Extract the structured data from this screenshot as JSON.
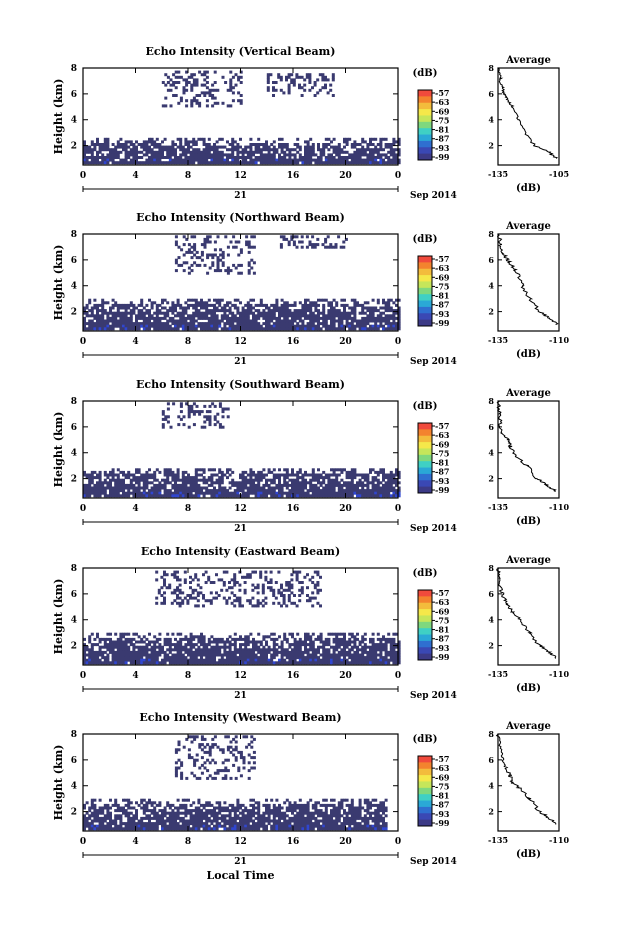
{
  "figure": {
    "date_label": "Sep 2014",
    "xaxis_label": "Local Time",
    "colorbar_title": "(dB)",
    "colorbar_ticks": [
      "-57",
      "-63",
      "-69",
      "-75",
      "-81",
      "-87",
      "-93",
      "-99"
    ],
    "colorbar_colors": [
      "#f04a3c",
      "#f3832e",
      "#f3bc3c",
      "#f5e84a",
      "#c6e65a",
      "#7fd87e",
      "#3fd0c4",
      "#2aa8d6",
      "#2f6fd0",
      "#3a48b4",
      "#3c3a86"
    ],
    "echo_color": "#3a3a70",
    "echo_low_color": "#3046d0"
  },
  "chart_data": [
    {
      "type": "heatmap",
      "title": "Echo Intensity (Vertical Beam)",
      "xlabel": "",
      "ylabel": "Height (km)",
      "x_ticks": [
        "0",
        "4",
        "8",
        "12",
        "16",
        "20",
        "0"
      ],
      "x_day_label": "21",
      "y_ticks": [
        "2",
        "4",
        "6",
        "8"
      ],
      "xlim": [
        0,
        24
      ],
      "ylim": [
        0.5,
        8
      ],
      "colorbar": {
        "label": "(dB)",
        "ticks": [
          -57,
          -63,
          -69,
          -75,
          -81,
          -87,
          -93,
          -99
        ]
      },
      "echo_regions": [
        {
          "x": [
            0,
            24
          ],
          "height_km": [
            0.6,
            2.6
          ],
          "level_db": -97
        },
        {
          "x": [
            6,
            12
          ],
          "height_km": [
            5.0,
            7.8
          ],
          "level_db": -97
        },
        {
          "x": [
            14,
            19
          ],
          "height_km": [
            5.8,
            7.6
          ],
          "level_db": -97
        }
      ],
      "average_profile": {
        "title": "Average",
        "xlabel": "(dB)",
        "x_ticks": [
          "-135",
          "-105"
        ],
        "y_ticks": [
          "2",
          "4",
          "6",
          "8"
        ],
        "xlim": [
          -135,
          -105
        ],
        "ylim": [
          0.5,
          8
        ],
        "db": [
          -106,
          -110,
          -117,
          -122,
          -125,
          -128,
          -130,
          -132,
          -133,
          -134,
          -134.5
        ],
        "height_km": [
          1.0,
          1.5,
          2.0,
          3.0,
          4.0,
          5.0,
          5.5,
          6.0,
          6.5,
          7.2,
          8.0
        ]
      }
    },
    {
      "type": "heatmap",
      "title": "Echo Intensity (Northward Beam)",
      "xlabel": "",
      "ylabel": "Height (km)",
      "x_ticks": [
        "0",
        "4",
        "8",
        "12",
        "16",
        "20",
        "0"
      ],
      "x_day_label": "21",
      "y_ticks": [
        "2",
        "4",
        "6",
        "8"
      ],
      "xlim": [
        0,
        24
      ],
      "ylim": [
        0.5,
        8
      ],
      "colorbar": {
        "label": "(dB)",
        "ticks": [
          -57,
          -63,
          -69,
          -75,
          -81,
          -87,
          -93,
          -99
        ]
      },
      "echo_regions": [
        {
          "x": [
            0,
            24
          ],
          "height_km": [
            0.6,
            3.0
          ],
          "level_db": -97
        },
        {
          "x": [
            7,
            13
          ],
          "height_km": [
            5.0,
            7.9
          ],
          "level_db": -97
        },
        {
          "x": [
            15,
            20
          ],
          "height_km": [
            7.0,
            7.9
          ],
          "level_db": -97
        }
      ],
      "average_profile": {
        "title": "Average",
        "xlabel": "(dB)",
        "x_ticks": [
          "-135",
          "-110"
        ],
        "y_ticks": [
          "2",
          "4",
          "6",
          "8"
        ],
        "xlim": [
          -135,
          -110
        ],
        "ylim": [
          0.5,
          8
        ],
        "db": [
          -111,
          -114,
          -118,
          -122,
          -125,
          -127,
          -129,
          -131,
          -133,
          -134,
          -134.5
        ],
        "height_km": [
          1.0,
          1.5,
          2.0,
          3.0,
          4.0,
          5.0,
          5.5,
          6.0,
          6.5,
          7.2,
          8.0
        ]
      }
    },
    {
      "type": "heatmap",
      "title": "Echo Intensity (Southward Beam)",
      "xlabel": "",
      "ylabel": "Height (km)",
      "x_ticks": [
        "0",
        "4",
        "8",
        "12",
        "16",
        "20",
        "0"
      ],
      "x_day_label": "21",
      "y_ticks": [
        "2",
        "4",
        "6",
        "8"
      ],
      "xlim": [
        0,
        24
      ],
      "ylim": [
        0.5,
        8
      ],
      "colorbar": {
        "label": "(dB)",
        "ticks": [
          -57,
          -63,
          -69,
          -75,
          -81,
          -87,
          -93,
          -99
        ]
      },
      "echo_regions": [
        {
          "x": [
            0,
            24
          ],
          "height_km": [
            0.6,
            2.8
          ],
          "level_db": -97
        },
        {
          "x": [
            6,
            11
          ],
          "height_km": [
            6.0,
            7.9
          ],
          "level_db": -97
        }
      ],
      "average_profile": {
        "title": "Average",
        "xlabel": "(dB)",
        "x_ticks": [
          "-135",
          "-110"
        ],
        "y_ticks": [
          "2",
          "4",
          "6",
          "8"
        ],
        "xlim": [
          -135,
          -110
        ],
        "ylim": [
          0.5,
          8
        ],
        "db": [
          -111,
          -115,
          -119,
          -123,
          -128,
          -130,
          -131,
          -133,
          -134,
          -134.5,
          -135
        ],
        "height_km": [
          1.0,
          1.5,
          2.0,
          3.0,
          3.8,
          4.5,
          5.0,
          5.5,
          6.2,
          7.0,
          8.0
        ]
      }
    },
    {
      "type": "heatmap",
      "title": "Echo Intensity (Eastward Beam)",
      "xlabel": "",
      "ylabel": "Height (km)",
      "x_ticks": [
        "0",
        "4",
        "8",
        "12",
        "16",
        "20",
        "0"
      ],
      "x_day_label": "21",
      "y_ticks": [
        "2",
        "4",
        "6",
        "8"
      ],
      "xlim": [
        0,
        24
      ],
      "ylim": [
        0.5,
        8
      ],
      "colorbar": {
        "label": "(dB)",
        "ticks": [
          -57,
          -63,
          -69,
          -75,
          -81,
          -87,
          -93,
          -99
        ]
      },
      "echo_regions": [
        {
          "x": [
            0,
            24
          ],
          "height_km": [
            0.6,
            3.0
          ],
          "level_db": -97
        },
        {
          "x": [
            5.5,
            18
          ],
          "height_km": [
            5.0,
            7.8
          ],
          "level_db": -97
        }
      ],
      "average_profile": {
        "title": "Average",
        "xlabel": "(dB)",
        "x_ticks": [
          "-135",
          "-110"
        ],
        "y_ticks": [
          "2",
          "4",
          "6",
          "8"
        ],
        "xlim": [
          -135,
          -110
        ],
        "ylim": [
          0.5,
          8
        ],
        "db": [
          -111,
          -114,
          -118,
          -122,
          -126,
          -129,
          -131,
          -133,
          -134,
          -134.5,
          -135
        ],
        "height_km": [
          1.0,
          1.5,
          2.0,
          3.0,
          4.0,
          4.6,
          5.2,
          5.8,
          6.5,
          7.2,
          8.0
        ]
      }
    },
    {
      "type": "heatmap",
      "title": "Echo Intensity (Westward Beam)",
      "xlabel": "",
      "ylabel": "Height (km)",
      "x_ticks": [
        "0",
        "4",
        "8",
        "12",
        "16",
        "20",
        "0"
      ],
      "x_day_label": "21",
      "y_ticks": [
        "2",
        "4",
        "6",
        "8"
      ],
      "xlim": [
        0,
        24
      ],
      "ylim": [
        0.5,
        8
      ],
      "colorbar": {
        "label": "(dB)",
        "ticks": [
          -57,
          -63,
          -69,
          -75,
          -81,
          -87,
          -93,
          -99
        ]
      },
      "echo_regions": [
        {
          "x": [
            0,
            23
          ],
          "height_km": [
            0.6,
            3.0
          ],
          "level_db": -97
        },
        {
          "x": [
            7,
            13
          ],
          "height_km": [
            4.5,
            7.9
          ],
          "level_db": -97
        }
      ],
      "average_profile": {
        "title": "Average",
        "xlabel": "(dB)",
        "x_ticks": [
          "-135",
          "-110"
        ],
        "y_ticks": [
          "2",
          "4",
          "6",
          "8"
        ],
        "xlim": [
          -135,
          -110
        ],
        "ylim": [
          0.5,
          8
        ],
        "db": [
          -111,
          -114,
          -118,
          -122,
          -126,
          -129,
          -130,
          -132,
          -133,
          -134,
          -135
        ],
        "height_km": [
          1.0,
          1.5,
          2.0,
          3.0,
          3.8,
          4.2,
          4.8,
          5.5,
          6.2,
          7.0,
          8.0
        ]
      }
    }
  ]
}
